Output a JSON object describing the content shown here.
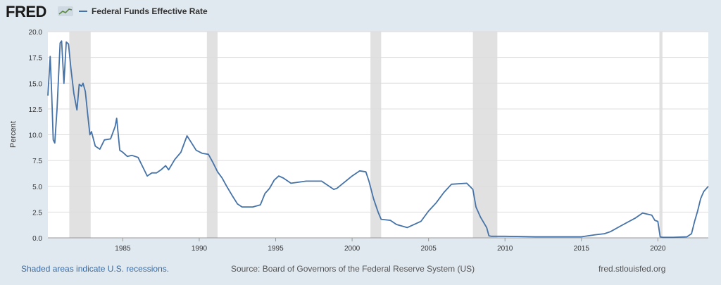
{
  "header": {
    "logo_text": "FRED",
    "logo_icon": "fred-chart-icon"
  },
  "colors": {
    "line": "#4572a7",
    "recession": "#e1e1e1",
    "background": "#e1e9f0",
    "plot_background": "#ffffff",
    "link": "#3b6aa0"
  },
  "footer": {
    "note": "Shaded areas indicate U.S. recessions.",
    "source": "Source: Board of Governors of the Federal Reserve System (US)",
    "site": "fred.stlouisfed.org"
  },
  "chart_data": {
    "type": "line",
    "title": "",
    "xlabel": "",
    "ylabel": "Percent",
    "xlim": [
      1980.1,
      2023.3
    ],
    "ylim": [
      0,
      20
    ],
    "yticks": [
      0,
      2.5,
      5,
      7.5,
      10,
      12.5,
      15,
      17.5,
      20
    ],
    "ytick_labels": [
      "0.0",
      "2.5",
      "5.0",
      "7.5",
      "10.0",
      "12.5",
      "15.0",
      "17.5",
      "20.0"
    ],
    "xticks": [
      1985,
      1990,
      1995,
      2000,
      2005,
      2010,
      2015,
      2020
    ],
    "xtick_labels": [
      "1985",
      "1990",
      "1995",
      "2000",
      "2005",
      "2010",
      "2015",
      "2020"
    ],
    "grid": true,
    "legend": "top-left",
    "recessions": [
      [
        1981.5,
        1982.9
      ],
      [
        1990.5,
        1991.2
      ],
      [
        2001.2,
        2001.9
      ],
      [
        2007.9,
        2009.5
      ],
      [
        2020.1,
        2020.3
      ]
    ],
    "series": [
      {
        "name": "Federal Funds Effective Rate",
        "x": [
          1980.1,
          1980.25,
          1980.35,
          1980.45,
          1980.55,
          1980.7,
          1980.9,
          1981.0,
          1981.15,
          1981.3,
          1981.45,
          1981.6,
          1981.8,
          1982.0,
          1982.15,
          1982.3,
          1982.4,
          1982.55,
          1982.7,
          1982.85,
          1982.95,
          1983.2,
          1983.5,
          1983.8,
          1984.2,
          1984.5,
          1984.6,
          1984.8,
          1985.0,
          1985.3,
          1985.6,
          1986.0,
          1986.3,
          1986.6,
          1986.9,
          1987.2,
          1987.5,
          1987.8,
          1988.0,
          1988.4,
          1988.8,
          1989.2,
          1989.5,
          1989.8,
          1990.2,
          1990.6,
          1990.9,
          1991.2,
          1991.5,
          1991.8,
          1992.2,
          1992.5,
          1992.8,
          1993.5,
          1994.0,
          1994.3,
          1994.6,
          1994.9,
          1995.2,
          1995.5,
          1996.0,
          1997.0,
          1998.0,
          1998.8,
          1999.0,
          1999.5,
          2000.0,
          2000.5,
          2000.9,
          2001.1,
          2001.4,
          2001.7,
          2001.9,
          2002.5,
          2002.9,
          2003.6,
          2004.5,
          2005.0,
          2005.5,
          2006.0,
          2006.5,
          2007.5,
          2007.9,
          2008.1,
          2008.4,
          2008.8,
          2008.95,
          2009.1,
          2010.0,
          2012.0,
          2015.0,
          2015.9,
          2016.5,
          2016.9,
          2017.5,
          2018.0,
          2018.5,
          2019.0,
          2019.6,
          2019.8,
          2020.0,
          2020.15,
          2020.3,
          2021.0,
          2021.9,
          2022.2,
          2022.4,
          2022.6,
          2022.8,
          2023.0,
          2023.3
        ],
        "values": [
          13.8,
          17.6,
          14.0,
          9.5,
          9.2,
          12.5,
          18.9,
          19.1,
          15.0,
          19.0,
          18.8,
          16.5,
          14.0,
          12.4,
          14.9,
          14.7,
          15.0,
          14.2,
          12.0,
          10.0,
          10.3,
          8.9,
          8.6,
          9.5,
          9.6,
          10.8,
          11.6,
          8.5,
          8.3,
          7.9,
          8.0,
          7.8,
          6.9,
          6.0,
          6.3,
          6.3,
          6.6,
          7.0,
          6.6,
          7.6,
          8.3,
          9.9,
          9.2,
          8.5,
          8.2,
          8.1,
          7.3,
          6.4,
          5.8,
          5.0,
          4.0,
          3.3,
          3.0,
          3.0,
          3.2,
          4.3,
          4.8,
          5.6,
          6.0,
          5.8,
          5.3,
          5.5,
          5.5,
          4.7,
          4.8,
          5.4,
          6.0,
          6.5,
          6.4,
          5.5,
          3.8,
          2.5,
          1.8,
          1.7,
          1.3,
          1.0,
          1.6,
          2.6,
          3.4,
          4.4,
          5.2,
          5.3,
          4.7,
          3.0,
          2.0,
          1.0,
          0.2,
          0.15,
          0.15,
          0.1,
          0.1,
          0.3,
          0.4,
          0.6,
          1.1,
          1.5,
          1.9,
          2.4,
          2.2,
          1.7,
          1.6,
          0.1,
          0.05,
          0.05,
          0.1,
          0.4,
          1.6,
          2.6,
          3.8,
          4.5,
          5.0
        ]
      }
    ]
  }
}
